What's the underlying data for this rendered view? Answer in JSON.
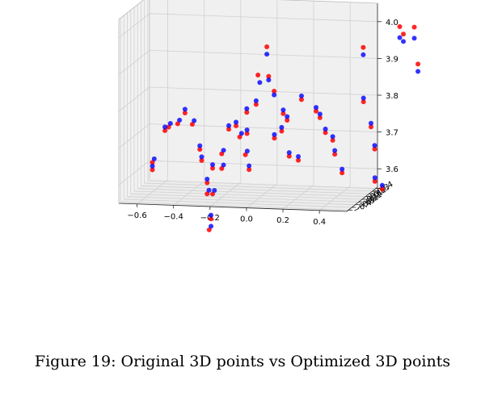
{
  "caption": "Figure 19: Original 3D points vs Optimized 3D points",
  "chart_data": {
    "type": "scatter",
    "projection": "3d",
    "grid": true,
    "x_ticks": [
      "−0.6",
      "−0.4",
      "−0.2",
      "0.0",
      "0.2",
      "0.4"
    ],
    "y_ticks": [
      "−0.4",
      "−0.3",
      "−0.2",
      "−0.1",
      "0.0",
      "0.1",
      "0.2",
      "0.3",
      "0.4"
    ],
    "y_tick_labels_shown": [
      "−0.4",
      "−0.3",
      "−0.2",
      "−0.1",
      "0.0",
      "0.1",
      "0.2",
      "0.3",
      "0.4"
    ],
    "z_ticks": [
      "3.6",
      "3.7",
      "3.8",
      "3.9",
      "4.0"
    ],
    "colors": {
      "original": "#ff0000",
      "optimized": "#0000ff"
    },
    "series": [
      {
        "color": "#ff0000",
        "points": [
          [
            -0.6,
            3.61,
            0.0
          ],
          [
            -0.6,
            3.63,
            0.0
          ],
          [
            -0.55,
            3.71,
            0.1
          ],
          [
            -0.53,
            3.72,
            0.1
          ],
          [
            -0.48,
            3.73,
            0.1
          ],
          [
            -0.44,
            3.76,
            0.1
          ],
          [
            -0.4,
            3.73,
            0.1
          ],
          [
            -0.34,
            3.67,
            0.0
          ],
          [
            -0.33,
            3.64,
            0.0
          ],
          [
            -0.3,
            3.58,
            0.0
          ],
          [
            -0.3,
            3.55,
            0.0
          ],
          [
            -0.27,
            3.62,
            0.0
          ],
          [
            -0.27,
            3.55,
            0.0
          ],
          [
            -0.26,
            3.49,
            -0.1
          ],
          [
            -0.27,
            3.46,
            -0.1
          ],
          [
            -0.22,
            3.66,
            0.0
          ],
          [
            -0.22,
            3.62,
            0.0
          ],
          [
            -0.16,
            3.73,
            0.1
          ],
          [
            -0.14,
            3.7,
            0.1
          ],
          [
            -0.1,
            3.71,
            0.1
          ],
          [
            -0.09,
            3.66,
            0.0
          ],
          [
            -0.07,
            3.62,
            0.0
          ],
          [
            -0.05,
            3.79,
            0.1
          ],
          [
            -0.04,
            3.87,
            0.1
          ],
          [
            -0.01,
            3.94,
            0.2
          ],
          [
            0.0,
            3.86,
            0.2
          ],
          [
            0.03,
            3.82,
            0.2
          ],
          [
            0.08,
            3.76,
            0.2
          ],
          [
            0.09,
            3.72,
            0.1
          ],
          [
            0.12,
            3.75,
            0.1
          ],
          [
            0.15,
            3.66,
            0.0
          ],
          [
            0.18,
            3.8,
            0.2
          ],
          [
            0.26,
            3.77,
            0.2
          ],
          [
            0.3,
            3.76,
            0.1
          ],
          [
            0.33,
            3.72,
            0.1
          ],
          [
            0.37,
            3.7,
            0.1
          ],
          [
            0.4,
            3.67,
            0.0
          ],
          [
            0.44,
            3.62,
            0.0
          ],
          [
            0.5,
            3.94,
            0.3
          ],
          [
            0.52,
            3.8,
            0.2
          ],
          [
            0.58,
            3.74,
            0.1
          ],
          [
            0.6,
            3.68,
            0.1
          ],
          [
            0.62,
            3.6,
            0.0
          ],
          [
            0.66,
            3.58,
            0.0
          ],
          [
            0.7,
            4.0,
            0.3
          ],
          [
            0.72,
            3.98,
            0.3
          ],
          [
            0.78,
            4.0,
            0.3
          ],
          [
            0.8,
            3.9,
            0.3
          ],
          [
            -0.12,
            3.76,
            0.2
          ],
          [
            0.05,
            3.7,
            0.1
          ],
          [
            0.2,
            3.65,
            0.0
          ],
          [
            -0.2,
            3.72,
            0.1
          ]
        ]
      },
      {
        "color": "#0000ff",
        "points": [
          [
            -0.6,
            3.62,
            0.0
          ],
          [
            -0.59,
            3.64,
            0.0
          ],
          [
            -0.55,
            3.72,
            0.1
          ],
          [
            -0.52,
            3.73,
            0.1
          ],
          [
            -0.47,
            3.74,
            0.1
          ],
          [
            -0.44,
            3.77,
            0.1
          ],
          [
            -0.39,
            3.74,
            0.1
          ],
          [
            -0.34,
            3.68,
            0.0
          ],
          [
            -0.33,
            3.65,
            0.0
          ],
          [
            -0.3,
            3.59,
            0.0
          ],
          [
            -0.29,
            3.56,
            0.0
          ],
          [
            -0.27,
            3.63,
            0.0
          ],
          [
            -0.26,
            3.56,
            0.0
          ],
          [
            -0.26,
            3.5,
            -0.1
          ],
          [
            -0.26,
            3.47,
            -0.1
          ],
          [
            -0.21,
            3.67,
            0.0
          ],
          [
            -0.21,
            3.63,
            0.0
          ],
          [
            -0.16,
            3.74,
            0.1
          ],
          [
            -0.13,
            3.71,
            0.1
          ],
          [
            -0.1,
            3.72,
            0.1
          ],
          [
            -0.08,
            3.67,
            0.0
          ],
          [
            -0.07,
            3.63,
            0.0
          ],
          [
            -0.05,
            3.8,
            0.1
          ],
          [
            -0.03,
            3.85,
            0.1
          ],
          [
            -0.01,
            3.92,
            0.2
          ],
          [
            0.0,
            3.85,
            0.2
          ],
          [
            0.03,
            3.81,
            0.2
          ],
          [
            0.08,
            3.77,
            0.2
          ],
          [
            0.09,
            3.73,
            0.1
          ],
          [
            0.12,
            3.76,
            0.1
          ],
          [
            0.15,
            3.67,
            0.0
          ],
          [
            0.18,
            3.81,
            0.2
          ],
          [
            0.26,
            3.78,
            0.2
          ],
          [
            0.3,
            3.77,
            0.1
          ],
          [
            0.33,
            3.73,
            0.1
          ],
          [
            0.37,
            3.71,
            0.1
          ],
          [
            0.4,
            3.68,
            0.0
          ],
          [
            0.44,
            3.63,
            0.0
          ],
          [
            0.5,
            3.92,
            0.3
          ],
          [
            0.52,
            3.81,
            0.2
          ],
          [
            0.58,
            3.75,
            0.1
          ],
          [
            0.6,
            3.69,
            0.1
          ],
          [
            0.62,
            3.61,
            0.0
          ],
          [
            0.66,
            3.59,
            0.0
          ],
          [
            0.7,
            3.97,
            0.3
          ],
          [
            0.72,
            3.96,
            0.3
          ],
          [
            0.78,
            3.97,
            0.3
          ],
          [
            0.8,
            3.88,
            0.3
          ],
          [
            -0.12,
            3.77,
            0.2
          ],
          [
            0.05,
            3.71,
            0.1
          ],
          [
            0.2,
            3.66,
            0.0
          ],
          [
            -0.2,
            3.73,
            0.1
          ]
        ]
      }
    ]
  }
}
